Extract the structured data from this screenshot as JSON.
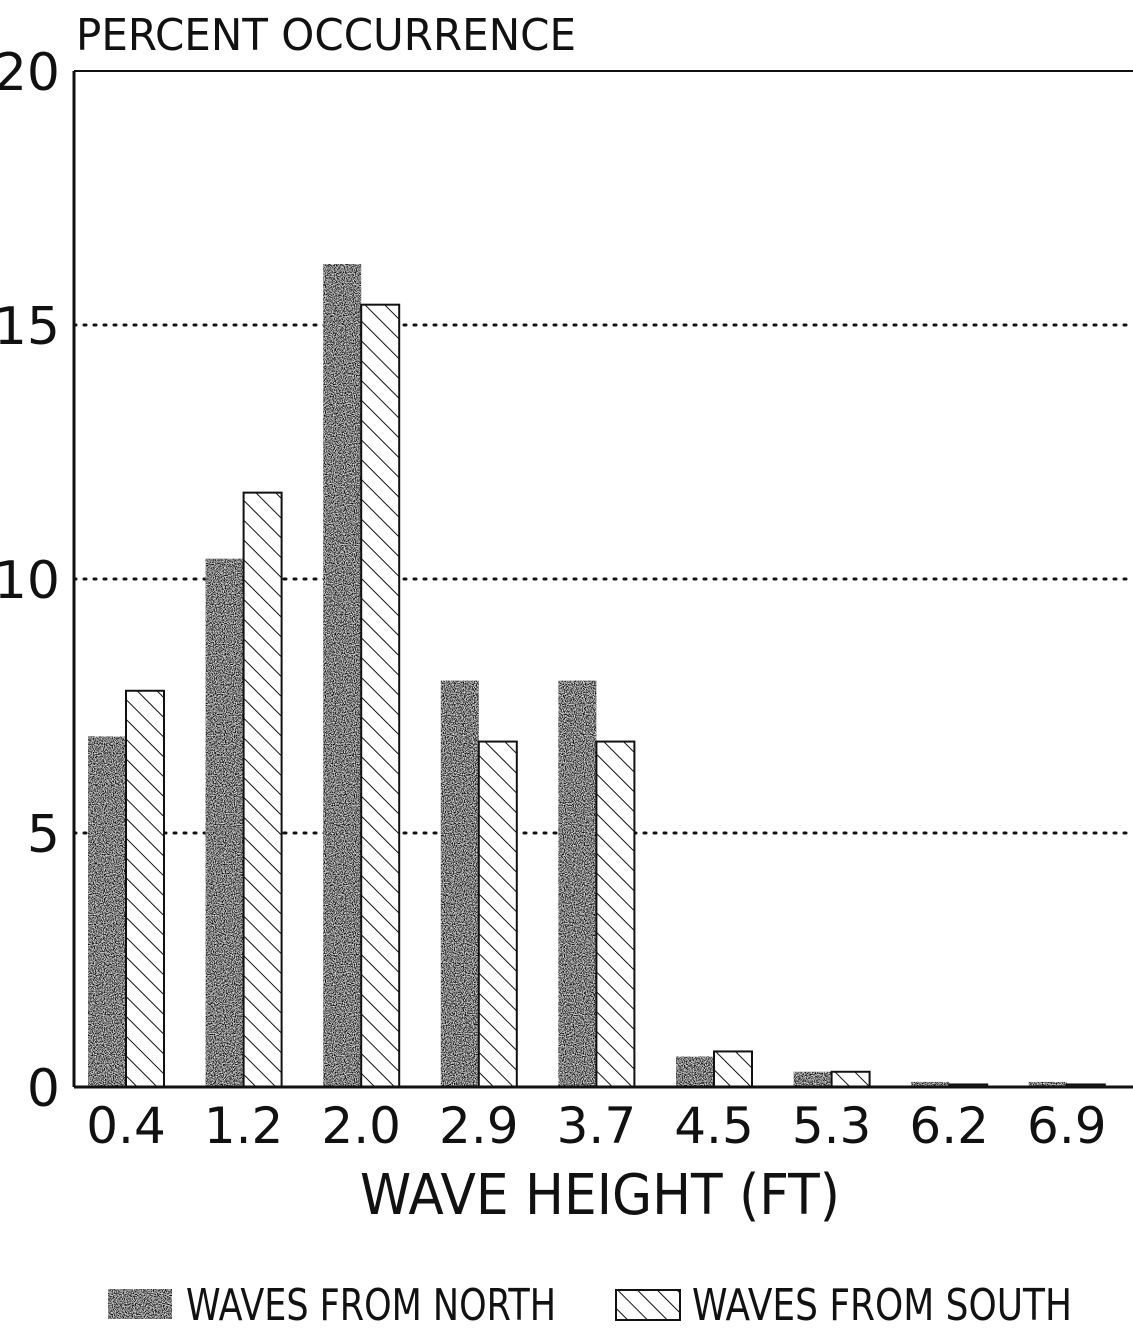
{
  "chart_data": {
    "type": "bar",
    "ylabel": "PERCENT OCCURRENCE",
    "xlabel": "WAVE HEIGHT (FT)",
    "categories": [
      "0.4",
      "1.2",
      "2.0",
      "2.9",
      "3.7",
      "4.5",
      "5.3",
      "6.2",
      "6.9"
    ],
    "yticks": [
      "0",
      "5",
      "10",
      "15",
      "20"
    ],
    "ylim": [
      0,
      20
    ],
    "grid": "horizontal dotted at 5, 10, 15",
    "legend_position": "bottom",
    "series": [
      {
        "name": "WAVES FROM NORTH",
        "pattern": "stippled",
        "color": "#111111",
        "values": [
          6.9,
          10.4,
          16.2,
          8.0,
          8.0,
          0.6,
          0.3,
          0.1,
          0.1
        ]
      },
      {
        "name": "WAVES FROM SOUTH",
        "pattern": "hatched",
        "color": "#111111",
        "values": [
          7.8,
          11.7,
          15.4,
          6.8,
          6.8,
          0.7,
          0.3,
          0.05,
          0.05
        ]
      }
    ]
  }
}
